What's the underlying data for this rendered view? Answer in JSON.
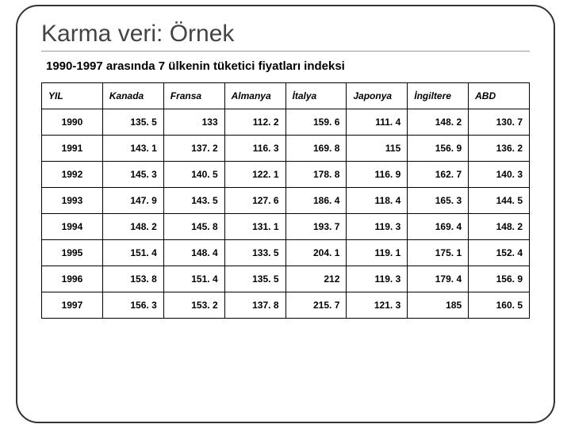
{
  "title": "Karma veri: Örnek",
  "subtitle": "1990-1997 arasında 7 ülkenin tüketici fiyatları indeksi",
  "table": {
    "columns": [
      "YIL",
      "Kanada",
      "Fransa",
      "Almanya",
      "İtalya",
      "Japonya",
      "İngiltere",
      "ABD"
    ],
    "rows": [
      [
        "1990",
        "135. 5",
        "133",
        "112. 2",
        "159. 6",
        "111. 4",
        "148. 2",
        "130. 7"
      ],
      [
        "1991",
        "143. 1",
        "137. 2",
        "116. 3",
        "169. 8",
        "115",
        "156. 9",
        "136. 2"
      ],
      [
        "1992",
        "145. 3",
        "140. 5",
        "122. 1",
        "178. 8",
        "116. 9",
        "162. 7",
        "140. 3"
      ],
      [
        "1993",
        "147. 9",
        "143. 5",
        "127. 6",
        "186. 4",
        "118. 4",
        "165. 3",
        "144. 5"
      ],
      [
        "1994",
        "148. 2",
        "145. 8",
        "131. 1",
        "193. 7",
        "119. 3",
        "169. 4",
        "148. 2"
      ],
      [
        "1995",
        "151. 4",
        "148. 4",
        "133. 5",
        "204. 1",
        "119. 1",
        "175. 1",
        "152. 4"
      ],
      [
        "1996",
        "153. 8",
        "151. 4",
        "135. 5",
        "212",
        "119. 3",
        "179. 4",
        "156. 9"
      ],
      [
        "1997",
        "156. 3",
        "153. 2",
        "137. 8",
        "215. 7",
        "121. 3",
        "185",
        "160. 5"
      ]
    ]
  }
}
